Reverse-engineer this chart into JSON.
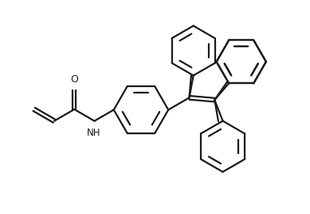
{
  "bg_color": "#ffffff",
  "line_color": "#1a1a1a",
  "line_width": 1.6,
  "figsize": [
    3.89,
    2.68
  ],
  "dpi": 100,
  "xlim": [
    0,
    10
  ],
  "ylim": [
    0,
    6.88
  ]
}
